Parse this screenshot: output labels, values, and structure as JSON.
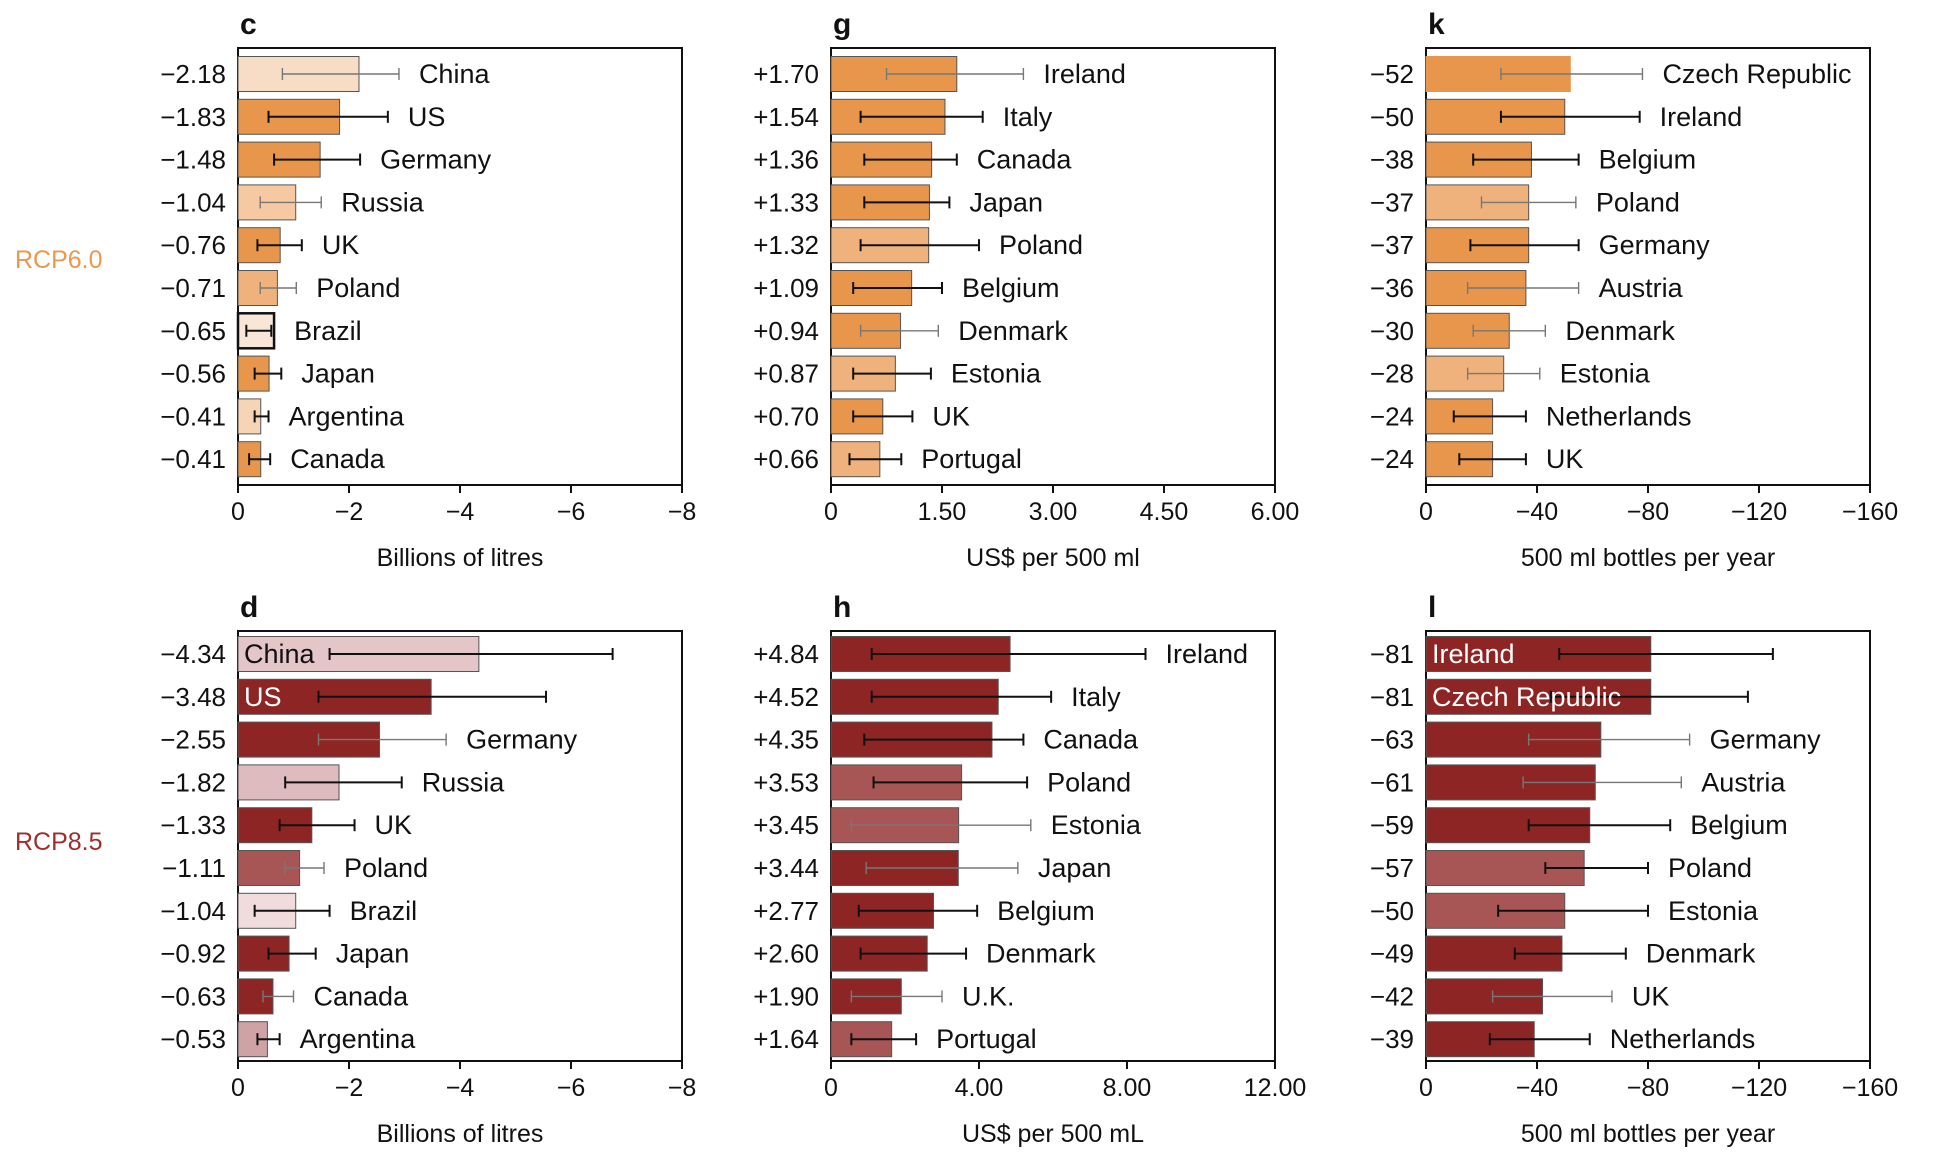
{
  "row_labels": [
    {
      "text": "RCP6.0",
      "color": "#E8994C"
    },
    {
      "text": "RCP8.5",
      "color": "#9E2E2E"
    }
  ],
  "chart_data": [
    {
      "panel": "c",
      "type": "bar",
      "orientation": "horizontal",
      "xlabel": "Billions of litres",
      "xlim": [
        0,
        -8
      ],
      "xticks": [
        0,
        -2,
        -4,
        -6,
        -8
      ],
      "xtick_labels": [
        "0",
        "−2",
        "−4",
        "−6",
        "−8"
      ],
      "categories": [
        "China",
        "US",
        "Germany",
        "Russia",
        "UK",
        "Poland",
        "Brazil",
        "Japan",
        "Argentina",
        "Canada"
      ],
      "value_labels": [
        "−2.18",
        "−1.83",
        "−1.48",
        "−1.04",
        "−0.76",
        "−0.71",
        "−0.65",
        "−0.56",
        "−0.41",
        "−0.41"
      ],
      "values": [
        -2.18,
        -1.83,
        -1.48,
        -1.04,
        -0.76,
        -0.71,
        -0.65,
        -0.56,
        -0.41,
        -0.41
      ],
      "err_low": [
        -0.8,
        -0.55,
        -0.65,
        -0.4,
        -0.35,
        -0.4,
        -0.15,
        -0.3,
        -0.3,
        -0.2
      ],
      "err_high": [
        -2.9,
        -2.7,
        -2.2,
        -1.5,
        -1.15,
        -1.05,
        -0.6,
        -0.78,
        -0.55,
        -0.58
      ],
      "fills": [
        "#F8DDC6",
        "#E8964B",
        "#E8964B",
        "#F6C9A2",
        "#E8964B",
        "#F0B27C",
        "#F9E6D6",
        "#E8964B",
        "#F6D4B6",
        "#E8964B"
      ],
      "strokes": [
        "#555555",
        "#555555",
        "#555555",
        "#555555",
        "#555555",
        "#555555",
        "#111111",
        "#555555",
        "#555555",
        "#555555"
      ],
      "error_colors": [
        "#777777",
        "#111111",
        "#111111",
        "#777777",
        "#111111",
        "#777777",
        "#111111",
        "#111111",
        "#111111",
        "#111111"
      ],
      "label_inside": [
        false,
        false,
        false,
        false,
        false,
        false,
        false,
        false,
        false,
        false
      ]
    },
    {
      "panel": "g",
      "type": "bar",
      "orientation": "horizontal",
      "xlabel": "US$ per 500 ml",
      "xlim": [
        0,
        6
      ],
      "xticks": [
        0,
        1.5,
        3,
        4.5,
        6
      ],
      "xtick_labels": [
        "0",
        "1.50",
        "3.00",
        "4.50",
        "6.00"
      ],
      "categories": [
        "Ireland",
        "Italy",
        "Canada",
        "Japan",
        "Poland",
        "Belgium",
        "Denmark",
        "Estonia",
        "UK",
        "Portugal"
      ],
      "value_labels": [
        "+1.70",
        "+1.54",
        "+1.36",
        "+1.33",
        "+1.32",
        "+1.09",
        "+0.94",
        "+0.87",
        "+0.70",
        "+0.66"
      ],
      "values": [
        1.7,
        1.54,
        1.36,
        1.33,
        1.32,
        1.09,
        0.94,
        0.87,
        0.7,
        0.66
      ],
      "err_low": [
        0.75,
        0.4,
        0.45,
        0.45,
        0.4,
        0.3,
        0.4,
        0.3,
        0.3,
        0.25
      ],
      "err_high": [
        2.6,
        2.05,
        1.7,
        1.6,
        2.0,
        1.5,
        1.45,
        1.35,
        1.1,
        0.95
      ],
      "fills": [
        "#E8964B",
        "#E8964B",
        "#E8964B",
        "#E8964B",
        "#F0B27C",
        "#E8964B",
        "#E8964B",
        "#F0B27C",
        "#E8964B",
        "#F0B27C"
      ],
      "strokes": [
        "#555555",
        "#555555",
        "#555555",
        "#555555",
        "#555555",
        "#555555",
        "#555555",
        "#555555",
        "#555555",
        "#555555"
      ],
      "error_colors": [
        "#777777",
        "#111111",
        "#111111",
        "#111111",
        "#111111",
        "#111111",
        "#777777",
        "#111111",
        "#111111",
        "#111111"
      ],
      "label_inside": [
        false,
        false,
        false,
        false,
        false,
        false,
        false,
        false,
        false,
        false
      ]
    },
    {
      "panel": "k",
      "type": "bar",
      "orientation": "horizontal",
      "xlabel": "500 ml bottles per year",
      "xlim": [
        0,
        -160
      ],
      "xticks": [
        0,
        -40,
        -80,
        -120,
        -160
      ],
      "xtick_labels": [
        "0",
        "−40",
        "−80",
        "−120",
        "−160"
      ],
      "categories": [
        "Czech Republic",
        "Ireland",
        "Belgium",
        "Poland",
        "Germany",
        "Austria",
        "Denmark",
        "Estonia",
        "Netherlands",
        "UK"
      ],
      "value_labels": [
        "−52",
        "−50",
        "−38",
        "−37",
        "−37",
        "−36",
        "−30",
        "−28",
        "−24",
        "−24"
      ],
      "values": [
        -52,
        -50,
        -38,
        -37,
        -37,
        -36,
        -30,
        -28,
        -24,
        -24
      ],
      "err_low": [
        -27,
        -27,
        -17,
        -20,
        -16,
        -15,
        -17,
        -15,
        -10,
        -12
      ],
      "err_high": [
        -78,
        -77,
        -55,
        -54,
        -55,
        -55,
        -43,
        -41,
        -36,
        -36
      ],
      "fills": [
        "#E8964B",
        "#E8964B",
        "#E8964B",
        "#F0B27C",
        "#E8964B",
        "#E8964B",
        "#E8964B",
        "#F0B27C",
        "#E8964B",
        "#E8964B"
      ],
      "strokes": [
        "#E8964B",
        "#555555",
        "#555555",
        "#555555",
        "#555555",
        "#555555",
        "#555555",
        "#555555",
        "#555555",
        "#555555"
      ],
      "error_colors": [
        "#777777",
        "#111111",
        "#111111",
        "#777777",
        "#111111",
        "#777777",
        "#777777",
        "#777777",
        "#111111",
        "#111111"
      ],
      "label_inside": [
        false,
        false,
        false,
        false,
        false,
        false,
        false,
        false,
        false,
        false
      ]
    },
    {
      "panel": "d",
      "type": "bar",
      "orientation": "horizontal",
      "xlabel": "Billions of litres",
      "xlim": [
        0,
        -8
      ],
      "xticks": [
        0,
        -2,
        -4,
        -6,
        -8
      ],
      "xtick_labels": [
        "0",
        "−2",
        "−4",
        "−6",
        "−8"
      ],
      "categories": [
        "China",
        "US",
        "Germany",
        "Russia",
        "UK",
        "Poland",
        "Brazil",
        "Japan",
        "Canada",
        "Argentina"
      ],
      "value_labels": [
        "−4.34",
        "−3.48",
        "−2.55",
        "−1.82",
        "−1.33",
        "−1.11",
        "−1.04",
        "−0.92",
        "−0.63",
        "−0.53"
      ],
      "values": [
        -4.34,
        -3.48,
        -2.55,
        -1.82,
        -1.33,
        -1.11,
        -1.04,
        -0.92,
        -0.63,
        -0.53
      ],
      "err_low": [
        -1.65,
        -1.45,
        -1.45,
        -0.85,
        -0.75,
        -0.85,
        -0.3,
        -0.55,
        -0.45,
        -0.35
      ],
      "err_high": [
        -6.75,
        -5.55,
        -3.75,
        -2.95,
        -2.1,
        -1.55,
        -1.65,
        -1.4,
        -1.0,
        -0.75
      ],
      "fills": [
        "#E5C6C8",
        "#8E2525",
        "#8E2525",
        "#DDBBBE",
        "#8E2525",
        "#A85555",
        "#F1DCDD",
        "#8E2525",
        "#8E2525",
        "#CFA2A5"
      ],
      "strokes": [
        "#555555",
        "#555555",
        "#555555",
        "#555555",
        "#555555",
        "#555555",
        "#555555",
        "#555555",
        "#555555",
        "#555555"
      ],
      "error_colors": [
        "#111111",
        "#111111",
        "#777777",
        "#111111",
        "#111111",
        "#777777",
        "#111111",
        "#111111",
        "#777777",
        "#111111"
      ],
      "label_inside": [
        true,
        true,
        false,
        false,
        false,
        false,
        false,
        false,
        false,
        false
      ],
      "inside_text_colors": [
        "#111111",
        "#ffffff"
      ]
    },
    {
      "panel": "h",
      "type": "bar",
      "orientation": "horizontal",
      "xlabel": "US$ per 500 mL",
      "xlim": [
        0,
        12
      ],
      "xticks": [
        0,
        4,
        8,
        12
      ],
      "xtick_labels": [
        "0",
        "4.00",
        "8.00",
        "12.00"
      ],
      "categories": [
        "Ireland",
        "Italy",
        "Canada",
        "Poland",
        "Estonia",
        "Japan",
        "Belgium",
        "Denmark",
        "U.K.",
        "Portugal"
      ],
      "value_labels": [
        "+4.84",
        "+4.52",
        "+4.35",
        "+3.53",
        "+3.45",
        "+3.44",
        "+2.77",
        "+2.60",
        "+1.90",
        "+1.64"
      ],
      "values": [
        4.84,
        4.52,
        4.35,
        3.53,
        3.45,
        3.44,
        2.77,
        2.6,
        1.9,
        1.64
      ],
      "err_low": [
        1.1,
        1.1,
        0.9,
        1.15,
        0.55,
        0.95,
        0.75,
        0.8,
        0.55,
        0.55
      ],
      "err_high": [
        8.5,
        5.95,
        5.2,
        5.3,
        5.4,
        5.05,
        3.95,
        3.65,
        3.0,
        2.3
      ],
      "fills": [
        "#8E2525",
        "#8E2525",
        "#8E2525",
        "#A85555",
        "#A85555",
        "#8E2525",
        "#8E2525",
        "#8E2525",
        "#8E2525",
        "#A85555"
      ],
      "strokes": [
        "#555555",
        "#555555",
        "#555555",
        "#555555",
        "#555555",
        "#555555",
        "#555555",
        "#555555",
        "#555555",
        "#555555"
      ],
      "error_colors": [
        "#111111",
        "#111111",
        "#111111",
        "#111111",
        "#777777",
        "#777777",
        "#111111",
        "#111111",
        "#777777",
        "#111111"
      ],
      "label_inside": [
        false,
        false,
        false,
        false,
        false,
        false,
        false,
        false,
        false,
        false
      ]
    },
    {
      "panel": "l",
      "type": "bar",
      "orientation": "horizontal",
      "xlabel": "500 ml bottles per year",
      "xlim": [
        0,
        -160
      ],
      "xticks": [
        0,
        -40,
        -80,
        -120,
        -160
      ],
      "xtick_labels": [
        "0",
        "−40",
        "−80",
        "−120",
        "−160"
      ],
      "categories": [
        "Ireland",
        "Czech Republic",
        "Germany",
        "Austria",
        "Belgium",
        "Poland",
        "Estonia",
        "Denmark",
        "UK",
        "Netherlands"
      ],
      "value_labels": [
        "−81",
        "−81",
        "−63",
        "−61",
        "−59",
        "−57",
        "−50",
        "−49",
        "−42",
        "−39"
      ],
      "values": [
        -81,
        -81,
        -63,
        -61,
        -59,
        -57,
        -50,
        -49,
        -42,
        -39
      ],
      "err_low": [
        -48,
        -45,
        -37,
        -35,
        -37,
        -43,
        -26,
        -32,
        -24,
        -23
      ],
      "err_high": [
        -125,
        -116,
        -95,
        -92,
        -88,
        -80,
        -80,
        -72,
        -67,
        -59
      ],
      "fills": [
        "#8E2525",
        "#8E2525",
        "#8E2525",
        "#8E2525",
        "#8E2525",
        "#A85555",
        "#A85555",
        "#8E2525",
        "#8E2525",
        "#8E2525"
      ],
      "strokes": [
        "#555555",
        "#555555",
        "#555555",
        "#555555",
        "#555555",
        "#555555",
        "#555555",
        "#555555",
        "#555555",
        "#555555"
      ],
      "error_colors": [
        "#111111",
        "#111111",
        "#777777",
        "#777777",
        "#111111",
        "#111111",
        "#111111",
        "#111111",
        "#777777",
        "#111111"
      ],
      "label_inside": [
        true,
        true,
        false,
        false,
        false,
        false,
        false,
        false,
        false,
        false
      ],
      "inside_text_colors": [
        "#ffffff",
        "#ffffff"
      ]
    }
  ]
}
